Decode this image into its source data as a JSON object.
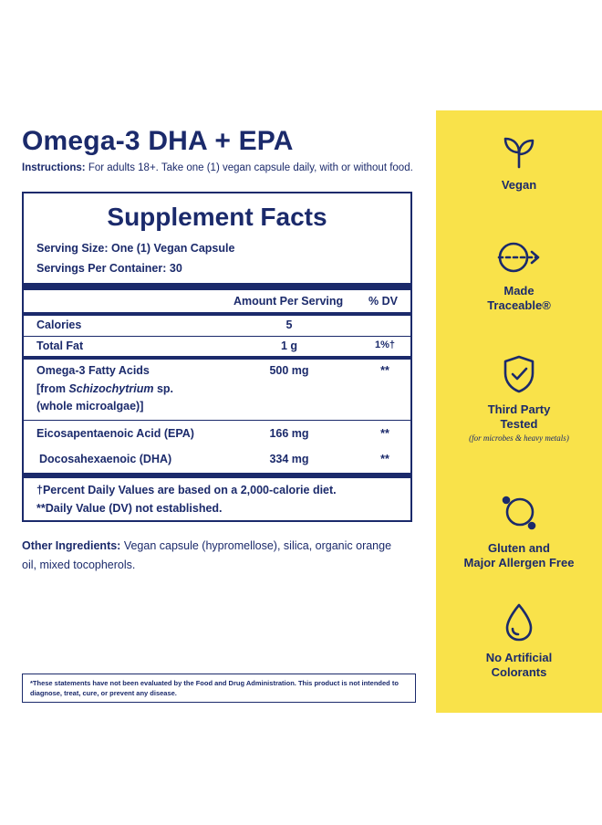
{
  "title": "Omega-3 DHA + EPA",
  "instructions": {
    "label": "Instructions:",
    "text": " For adults 18+. Take one (1) vegan capsule daily, with or without food."
  },
  "facts": {
    "title": "Supplement Facts",
    "serving_size": "Serving Size: One (1) Vegan Capsule",
    "servings_per_container": "Servings Per Container: 30",
    "header_amount": "Amount Per Serving",
    "header_dv": "% DV",
    "rows": [
      {
        "name": "Calories",
        "amount": "5",
        "dv": ""
      },
      {
        "name": "Total Fat",
        "amount": "1 g",
        "dv": "1%†"
      },
      {
        "name": "Omega-3 Fatty Acids",
        "amount": "500 mg",
        "dv": "**"
      },
      {
        "name": "Eicosapentaenoic Acid (EPA)",
        "amount": "166 mg",
        "dv": "**"
      },
      {
        "name": "Docosahexaenoic (DHA)",
        "amount": "334 mg",
        "dv": "**"
      }
    ],
    "omega_source": {
      "prefix": "[from ",
      "genus": "Schizochytrium",
      "suffix": " sp.",
      "line2": "(whole microalgae)]"
    },
    "footnote_1": "†Percent Daily Values are based on a 2,000-calorie diet.",
    "footnote_2": "**Daily Value (DV) not established."
  },
  "other_ingredients": {
    "label": "Other Ingredients:",
    "text": " Vegan capsule (hypromellose), silica, organic orange oil, mixed tocopherols."
  },
  "disclaimer": "*These statements have not been evaluated by the Food and Drug Administration. This product is not intended to diagnose, treat, cure, or prevent any disease.",
  "features": [
    {
      "icon": "sprout-icon",
      "line1": "Vegan",
      "line2": "",
      "note": ""
    },
    {
      "icon": "traceable-arrow-icon",
      "line1": "Made",
      "line2": "Traceable®",
      "note": ""
    },
    {
      "icon": "shield-check-icon",
      "line1": "Third Party",
      "line2": "Tested",
      "note": "(for microbes & heavy metals)"
    },
    {
      "icon": "gluten-free-icon",
      "line1": "Gluten and",
      "line2": "Major Allergen Free",
      "note": ""
    },
    {
      "icon": "droplet-icon",
      "line1": "No Artificial",
      "line2": "Colorants",
      "note": ""
    }
  ],
  "colors": {
    "navy": "#1b2a6b",
    "yellow": "#f9e24a"
  }
}
